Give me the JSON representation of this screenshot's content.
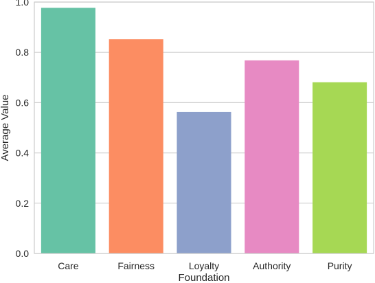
{
  "chart_data": {
    "type": "bar",
    "title": "",
    "xlabel": "Foundation",
    "ylabel": "Average Value",
    "categories": [
      "Care",
      "Fairness",
      "Loyalty",
      "Authority",
      "Purity"
    ],
    "values": [
      0.977,
      0.852,
      0.563,
      0.768,
      0.681
    ],
    "colors": [
      "#66c2a5",
      "#fc8d62",
      "#8da0cb",
      "#e78ac3",
      "#a6d854"
    ],
    "ylim": [
      0,
      1.0
    ],
    "yticks": [
      "0.0",
      "0.2",
      "0.4",
      "0.6",
      "0.8",
      "1.0"
    ],
    "ytick_values": [
      0,
      0.2,
      0.4,
      0.6,
      0.8,
      1.0
    ],
    "grid": "horizontal",
    "legend": "none"
  }
}
